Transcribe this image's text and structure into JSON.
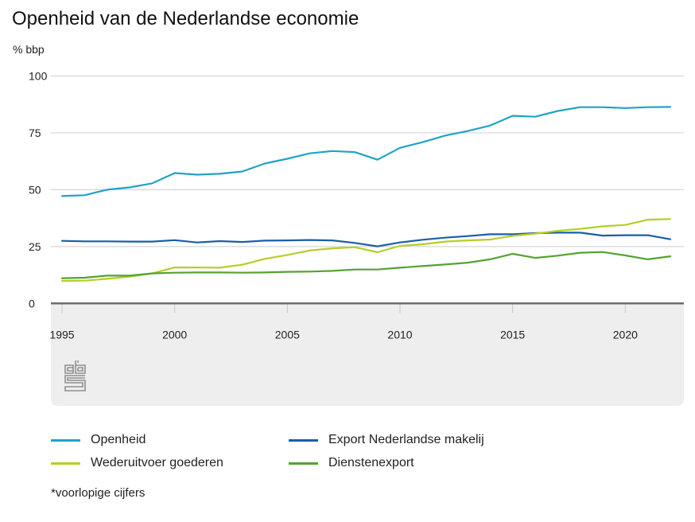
{
  "chart_data": {
    "type": "line",
    "title": "Openheid van de Nederlandse economie",
    "ylabel": "% bbp",
    "xlabel": "",
    "ylim": [
      0,
      100
    ],
    "yticks": [
      0,
      25,
      50,
      75,
      100
    ],
    "ytick_labels": [
      "0",
      "25",
      "50",
      "75",
      "100"
    ],
    "xlim": [
      1995,
      2022
    ],
    "xticks": [
      1995,
      2000,
      2005,
      2010,
      2015,
      2020
    ],
    "xtick_labels": [
      "1995",
      "2000",
      "2005",
      "2010",
      "2015",
      "2020"
    ],
    "grid": true,
    "legend_position": "bottom",
    "x": [
      1995,
      1996,
      1997,
      1998,
      1999,
      2000,
      2001,
      2002,
      2003,
      2004,
      2005,
      2006,
      2007,
      2008,
      2009,
      2010,
      2011,
      2012,
      2013,
      2014,
      2015,
      2016,
      2017,
      2018,
      2019,
      2020,
      2021,
      2022
    ],
    "series": [
      {
        "name": "Openheid",
        "color": "#1fa3c8",
        "values": [
          47.2,
          47.6,
          50.0,
          51.0,
          52.8,
          57.3,
          56.6,
          57.0,
          58.0,
          61.5,
          63.6,
          66.0,
          67.0,
          66.5,
          63.2,
          68.4,
          70.9,
          73.8,
          75.8,
          78.2,
          82.5,
          82.1,
          84.6,
          86.3,
          86.3,
          85.9,
          86.3,
          86.4
        ]
      },
      {
        "name": "Export Nederlandse makelij",
        "color": "#1a5ea8",
        "values": [
          27.5,
          27.3,
          27.3,
          27.2,
          27.2,
          27.8,
          26.8,
          27.4,
          27.0,
          27.6,
          27.7,
          27.9,
          27.7,
          26.6,
          25.1,
          26.8,
          28.0,
          28.9,
          29.6,
          30.4,
          30.4,
          30.9,
          31.1,
          31.1,
          29.8,
          30.0,
          30.0,
          28.2
        ]
      },
      {
        "name": "Wederuitvoer goederen",
        "color": "#b5cf26",
        "values": [
          9.9,
          10.0,
          10.8,
          11.8,
          13.2,
          15.8,
          15.8,
          15.7,
          17.0,
          19.6,
          21.3,
          23.3,
          24.2,
          24.7,
          22.5,
          25.3,
          26.0,
          27.2,
          27.7,
          28.1,
          29.7,
          30.7,
          31.9,
          32.8,
          33.9,
          34.5,
          36.8,
          37.1
        ]
      },
      {
        "name": "Dienstenexport",
        "color": "#55a232",
        "values": [
          11.1,
          11.3,
          12.2,
          12.2,
          13.2,
          13.5,
          13.6,
          13.6,
          13.5,
          13.6,
          13.9,
          14.0,
          14.3,
          14.9,
          14.9,
          15.7,
          16.4,
          17.1,
          17.9,
          19.4,
          21.8,
          20.0,
          21.0,
          22.3,
          22.6,
          21.1,
          19.4,
          20.7
        ]
      }
    ]
  },
  "legend": [
    {
      "label": "Openheid",
      "color": "#1fa3c8"
    },
    {
      "label": "Export Nederlandse makelij",
      "color": "#1a5ea8"
    },
    {
      "label": "Wederuitvoer goederen",
      "color": "#b5cf26"
    },
    {
      "label": "Dienstenexport",
      "color": "#55a232"
    }
  ],
  "footnote": "*voorlopige cijfers",
  "logo": {
    "name": "cbs-logo",
    "text": "cbs"
  }
}
